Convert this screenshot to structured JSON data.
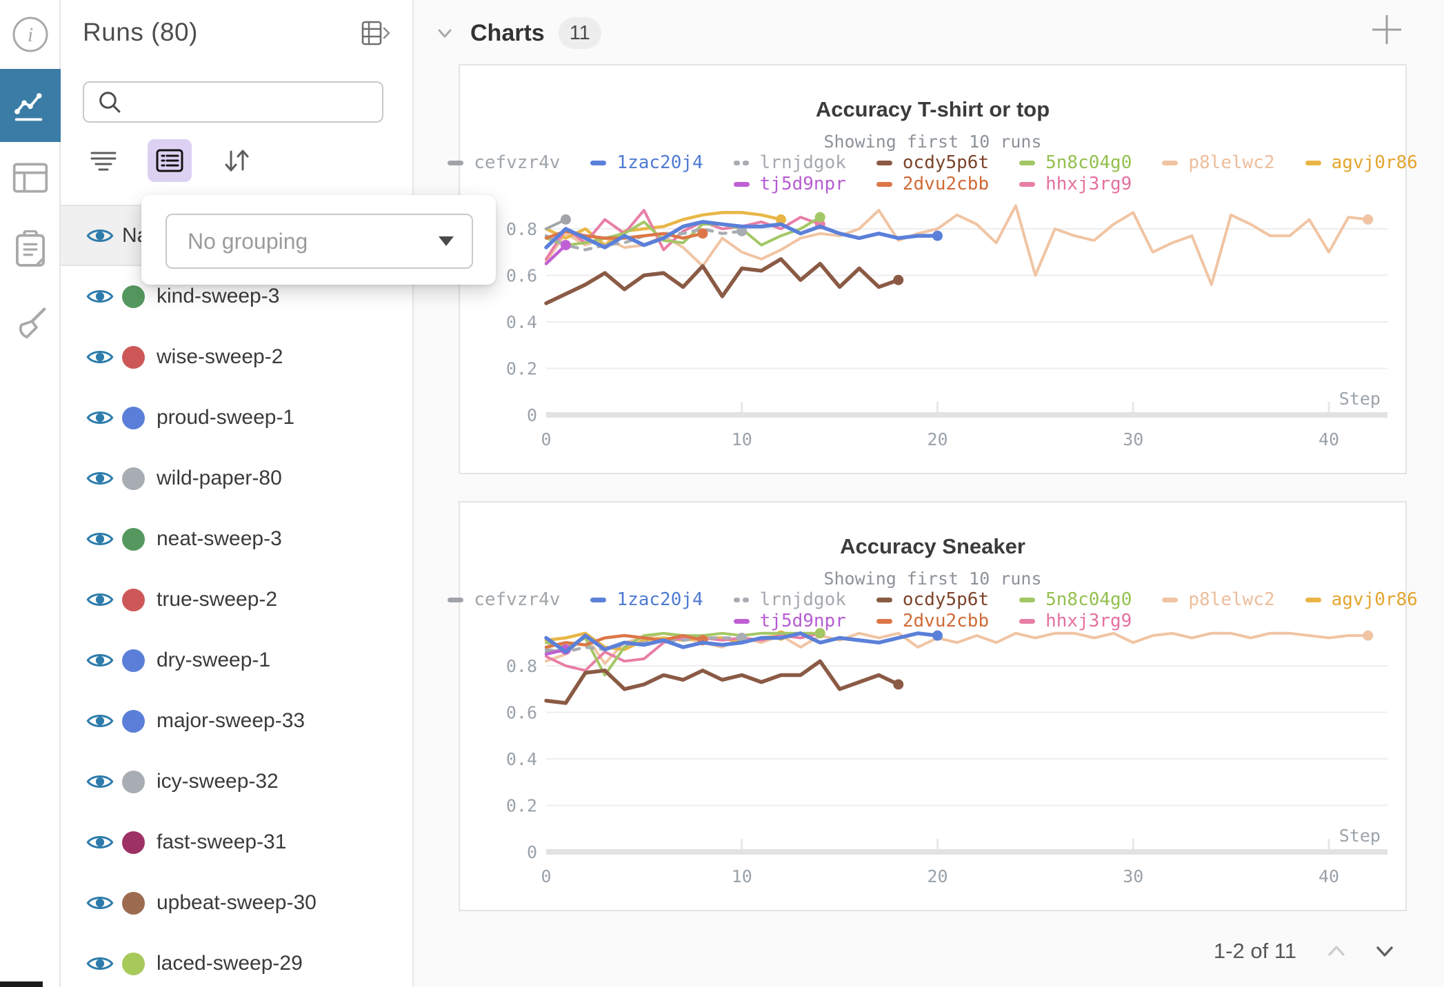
{
  "nav_rail": {
    "items": [
      {
        "icon": "info-icon",
        "active": false
      },
      {
        "icon": "line-chart-icon",
        "active": true
      },
      {
        "icon": "table-icon",
        "active": false
      },
      {
        "icon": "clipboard-icon",
        "active": false
      },
      {
        "icon": "broom-icon",
        "active": false
      }
    ]
  },
  "runs_panel": {
    "title": "Runs (80)",
    "expand_icon": "table-expand-icon",
    "search": {
      "value": "",
      "placeholder": ""
    },
    "toolbar_icons": [
      "filter-icon",
      "group-list-icon",
      "sort-icon"
    ],
    "header_row_partial": "Na",
    "grouping_popup": {
      "selected": "No grouping"
    },
    "runs": [
      {
        "name": "kind-sweep-3",
        "color": "#55985f"
      },
      {
        "name": "wise-sweep-2",
        "color": "#cd5757"
      },
      {
        "name": "proud-sweep-1",
        "color": "#5b7fd8"
      },
      {
        "name": "wild-paper-80",
        "color": "#a8adb3"
      },
      {
        "name": "neat-sweep-3",
        "color": "#55985f"
      },
      {
        "name": "true-sweep-2",
        "color": "#cd5757"
      },
      {
        "name": "dry-sweep-1",
        "color": "#5b7fd8"
      },
      {
        "name": "major-sweep-33",
        "color": "#5b7fd8"
      },
      {
        "name": "icy-sweep-32",
        "color": "#a8adb3"
      },
      {
        "name": "fast-sweep-31",
        "color": "#9d3164"
      },
      {
        "name": "upbeat-sweep-30",
        "color": "#9d6b50"
      },
      {
        "name": "laced-sweep-29",
        "color": "#a7c95a"
      }
    ]
  },
  "charts_section": {
    "header": "Charts",
    "count": "11",
    "pagination": {
      "label": "1-2 of 11",
      "up_enabled": false,
      "down_enabled": true
    }
  },
  "colors": {
    "nav_active_bg": "#3a7ca6",
    "group_btn_bg": "#dcd1f2",
    "eye_icon": "#2e7cab",
    "panel_border": "#e3e3e3",
    "charts_bg": "#fafafa"
  },
  "chart_data": [
    {
      "type": "line",
      "title": "Accuracy T-shirt or top",
      "subtitle": "Showing first 10 runs",
      "xlabel": "Step",
      "ylabel": "",
      "ylim": [
        0,
        0.95
      ],
      "yticks": [
        0,
        0.2,
        0.4,
        0.6,
        0.8
      ],
      "xticks": [
        0,
        10,
        20,
        30,
        40
      ],
      "grid": true,
      "legend_position": "top",
      "legend_row_break": 7,
      "x_start": 0,
      "x_step": 1,
      "series": [
        {
          "id": "cefvzr4v",
          "color": "#a0a4a8",
          "label_color": "#9fa5aa",
          "width": 4,
          "values": [
            0.8,
            0.84
          ]
        },
        {
          "id": "1zac20j4",
          "color": "#5b80d9",
          "label_color": "#4f7ad2",
          "width": 5.5,
          "values": [
            0.72,
            0.8,
            0.76,
            0.72,
            0.77,
            0.73,
            0.76,
            0.81,
            0.83,
            0.82,
            0.81,
            0.81,
            0.82,
            0.78,
            0.81,
            0.78,
            0.76,
            0.78,
            0.76,
            0.77,
            0.77
          ]
        },
        {
          "id": "lrnjdgok",
          "color": "#a9adb3",
          "label_color": "#a4a9af",
          "width": 4.5,
          "dash": true,
          "values": [
            0.77,
            0.73,
            0.71,
            0.73,
            0.74,
            0.77,
            0.78,
            0.78,
            0.8,
            0.78,
            0.79
          ]
        },
        {
          "id": "ocdy5p6t",
          "color": "#8a5a45",
          "label_color": "#7c432a",
          "width": 5.5,
          "values": [
            0.48,
            0.52,
            0.56,
            0.61,
            0.54,
            0.6,
            0.61,
            0.55,
            0.64,
            0.51,
            0.63,
            0.62,
            0.67,
            0.58,
            0.65,
            0.55,
            0.63,
            0.55,
            0.58
          ]
        },
        {
          "id": "5n8c04g0",
          "color": "#a3c765",
          "label_color": "#94bf4d",
          "width": 4,
          "values": [
            0.76,
            0.73,
            0.74,
            0.76,
            0.78,
            0.83,
            0.75,
            0.74,
            0.82,
            0.82,
            0.8,
            0.73,
            0.77,
            0.8,
            0.85
          ]
        },
        {
          "id": "p8lelwc2",
          "color": "#f0c4a3",
          "label_color": "#edbd9b",
          "width": 4,
          "values": [
            0.66,
            0.78,
            0.73,
            0.76,
            0.72,
            0.73,
            0.77,
            0.72,
            0.64,
            0.76,
            0.7,
            0.67,
            0.71,
            0.76,
            0.78,
            0.77,
            0.8,
            0.88,
            0.75,
            0.78,
            0.8,
            0.86,
            0.82,
            0.74,
            0.9,
            0.6,
            0.8,
            0.77,
            0.75,
            0.82,
            0.87,
            0.7,
            0.74,
            0.77,
            0.56,
            0.86,
            0.82,
            0.77,
            0.77,
            0.84,
            0.7,
            0.85,
            0.84
          ]
        },
        {
          "id": "agvj0r86",
          "color": "#e9b646",
          "label_color": "#e3a52f",
          "width": 4.5,
          "values": [
            0.8,
            0.76,
            0.8,
            0.73,
            0.79,
            0.8,
            0.81,
            0.84,
            0.86,
            0.87,
            0.87,
            0.86,
            0.84
          ]
        },
        {
          "id": "tj5d9npr",
          "color": "#c05fd3",
          "label_color": "#b65cd3",
          "width": 4.5,
          "values": [
            0.65,
            0.73
          ]
        },
        {
          "id": "2dvu2cbb",
          "color": "#dc7648",
          "label_color": "#d06a35",
          "width": 4.5,
          "values": [
            0.76,
            0.79,
            0.77,
            0.76,
            0.76,
            0.77,
            0.78,
            0.76,
            0.78
          ]
        },
        {
          "id": "hhxj3rg9",
          "color": "#e87ea6",
          "label_color": "#e4709e",
          "width": 4,
          "values": [
            0.67,
            0.8,
            0.74,
            0.84,
            0.78,
            0.88,
            0.71,
            0.79,
            0.83,
            0.8,
            0.81,
            0.83,
            0.8,
            0.85,
            0.82
          ]
        }
      ]
    },
    {
      "type": "line",
      "title": "Accuracy Sneaker",
      "subtitle": "Showing first 10 runs",
      "xlabel": "Step",
      "ylabel": "",
      "ylim": [
        0,
        0.95
      ],
      "yticks": [
        0,
        0.2,
        0.4,
        0.6,
        0.8
      ],
      "xticks": [
        0,
        10,
        20,
        30,
        40
      ],
      "grid": true,
      "legend_position": "top",
      "legend_row_break": 7,
      "x_start": 0,
      "x_step": 1,
      "series": [
        {
          "id": "cefvzr4v",
          "color": "#a0a4a8",
          "label_color": "#9fa5aa",
          "width": 4,
          "values": [
            0.86,
            0.87
          ]
        },
        {
          "id": "1zac20j4",
          "color": "#5b80d9",
          "label_color": "#4f7ad2",
          "width": 5.5,
          "values": [
            0.92,
            0.86,
            0.93,
            0.87,
            0.9,
            0.89,
            0.91,
            0.88,
            0.9,
            0.89,
            0.9,
            0.92,
            0.92,
            0.94,
            0.9,
            0.92,
            0.91,
            0.9,
            0.92,
            0.94,
            0.93
          ]
        },
        {
          "id": "lrnjdgok",
          "color": "#a9adb3",
          "label_color": "#a4a9af",
          "width": 4.5,
          "dash": true,
          "values": [
            0.87,
            0.86,
            0.88,
            0.87,
            0.89,
            0.9,
            0.91,
            0.91,
            0.92,
            0.92,
            0.92
          ]
        },
        {
          "id": "ocdy5p6t",
          "color": "#8a5a45",
          "label_color": "#7c432a",
          "width": 5.5,
          "values": [
            0.65,
            0.64,
            0.77,
            0.78,
            0.7,
            0.72,
            0.76,
            0.74,
            0.78,
            0.74,
            0.76,
            0.73,
            0.76,
            0.76,
            0.82,
            0.7,
            0.73,
            0.76,
            0.72
          ]
        },
        {
          "id": "5n8c04g0",
          "color": "#a3c765",
          "label_color": "#94bf4d",
          "width": 4,
          "values": [
            0.9,
            0.88,
            0.92,
            0.76,
            0.88,
            0.93,
            0.94,
            0.93,
            0.93,
            0.94,
            0.93,
            0.94,
            0.94,
            0.94,
            0.94
          ]
        },
        {
          "id": "p8lelwc2",
          "color": "#f0c4a3",
          "label_color": "#edbd9b",
          "width": 4,
          "values": [
            0.82,
            0.85,
            0.93,
            0.81,
            0.9,
            0.92,
            0.94,
            0.92,
            0.9,
            0.88,
            0.92,
            0.9,
            0.93,
            0.88,
            0.93,
            0.91,
            0.94,
            0.92,
            0.94,
            0.88,
            0.92,
            0.9,
            0.93,
            0.9,
            0.94,
            0.92,
            0.94,
            0.94,
            0.92,
            0.94,
            0.9,
            0.93,
            0.94,
            0.92,
            0.94,
            0.94,
            0.92,
            0.94,
            0.94,
            0.93,
            0.92,
            0.93,
            0.93
          ]
        },
        {
          "id": "agvj0r86",
          "color": "#e9b646",
          "label_color": "#e3a52f",
          "width": 4.5,
          "values": [
            0.91,
            0.92,
            0.94,
            0.88,
            0.87,
            0.91,
            0.92,
            0.91,
            0.92,
            0.92,
            0.9,
            0.92,
            0.93
          ]
        },
        {
          "id": "tj5d9npr",
          "color": "#c05fd3",
          "label_color": "#b65cd3",
          "width": 4.5,
          "values": [
            0.85,
            0.87
          ]
        },
        {
          "id": "2dvu2cbb",
          "color": "#dc7648",
          "label_color": "#d06a35",
          "width": 4.5,
          "values": [
            0.88,
            0.9,
            0.89,
            0.92,
            0.93,
            0.92,
            0.91,
            0.93,
            0.91
          ]
        },
        {
          "id": "hhxj3rg9",
          "color": "#e87ea6",
          "label_color": "#e4709e",
          "width": 4,
          "values": [
            0.84,
            0.8,
            0.78,
            0.86,
            0.82,
            0.83,
            0.9,
            0.92,
            0.92,
            0.91,
            0.92,
            0.91,
            0.93,
            0.92,
            0.94
          ]
        }
      ]
    }
  ]
}
